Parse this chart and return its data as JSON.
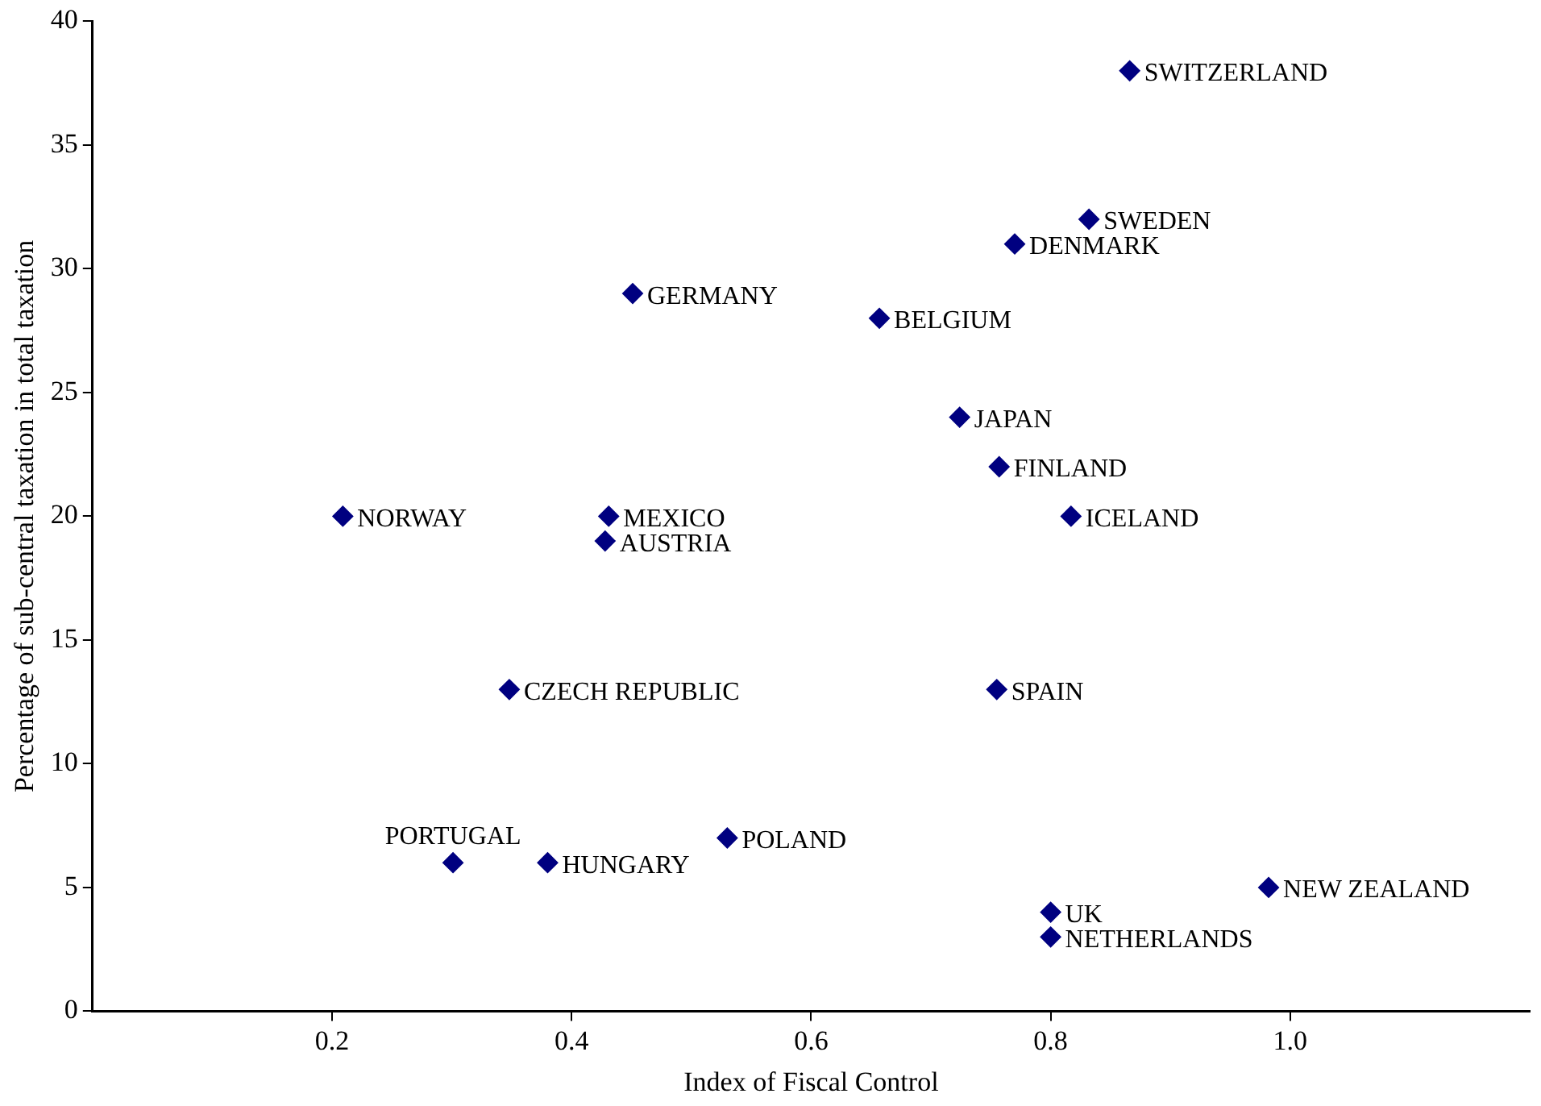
{
  "chart_data": {
    "type": "scatter",
    "xlabel": "Index of Fiscal Control",
    "ylabel": "Percentage of sub-central taxation in total taxation",
    "x": [
      0.866,
      0.832,
      0.77,
      0.451,
      0.657,
      0.724,
      0.757,
      0.209,
      0.431,
      0.817,
      0.428,
      0.348,
      0.755,
      0.301,
      0.38,
      0.53,
      0.8,
      0.8,
      0.982
    ],
    "series": [
      {
        "color": "#000080",
        "values": [
          38,
          32,
          31,
          29,
          28,
          24,
          22,
          20,
          20,
          20,
          19,
          13,
          13,
          6,
          6,
          7,
          4,
          3,
          5
        ]
      }
    ],
    "annotations": [
      {
        "text": "SWITZERLAND",
        "x": 0.866,
        "y": 38
      },
      {
        "text": "SWEDEN",
        "x": 0.832,
        "y": 32
      },
      {
        "text": "DENMARK",
        "x": 0.77,
        "y": 31
      },
      {
        "text": "GERMANY",
        "x": 0.451,
        "y": 29
      },
      {
        "text": "BELGIUM",
        "x": 0.657,
        "y": 28
      },
      {
        "text": "JAPAN",
        "x": 0.724,
        "y": 24
      },
      {
        "text": "FINLAND",
        "x": 0.757,
        "y": 22
      },
      {
        "text": "NORWAY",
        "x": 0.209,
        "y": 20
      },
      {
        "text": "MEXICO",
        "x": 0.431,
        "y": 20
      },
      {
        "text": "ICELAND",
        "x": 0.817,
        "y": 20
      },
      {
        "text": "AUSTRIA",
        "x": 0.428,
        "y": 19
      },
      {
        "text": "CZECH REPUBLIC",
        "x": 0.348,
        "y": 13
      },
      {
        "text": "SPAIN",
        "x": 0.755,
        "y": 13
      },
      {
        "text": "PORTUGAL",
        "x": 0.301,
        "y": 6
      },
      {
        "text": "HUNGARY",
        "x": 0.38,
        "y": 6
      },
      {
        "text": "POLAND",
        "x": 0.53,
        "y": 7
      },
      {
        "text": "UK",
        "x": 0.8,
        "y": 4
      },
      {
        "text": "NETHERLANDS",
        "x": 0.8,
        "y": 3
      },
      {
        "text": "NEW ZEALAND",
        "x": 0.982,
        "y": 5
      }
    ],
    "xlim": [
      0,
      1.2
    ],
    "xticks": [
      0.2,
      0.4,
      0.6,
      0.8,
      {
        "value": 1,
        "label": "1.0"
      }
    ],
    "ylim": [
      0,
      40
    ],
    "yticks": [
      0,
      5,
      10,
      15,
      20,
      25,
      30,
      35,
      40
    ],
    "marker": "diamond",
    "grid": false,
    "legend": false
  }
}
